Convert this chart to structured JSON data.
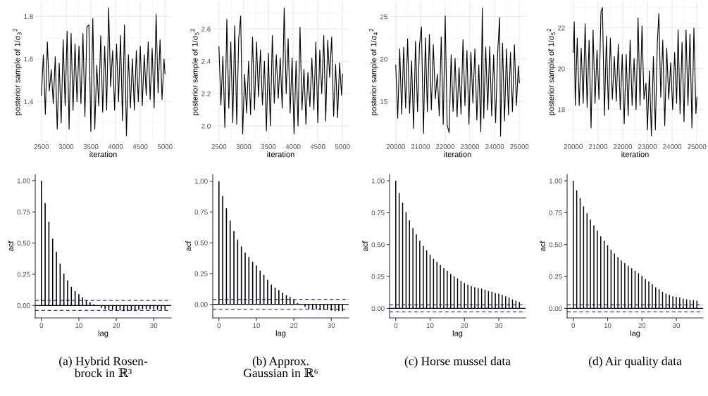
{
  "chart_data": [
    {
      "type": "line",
      "xlabel": "iteration",
      "ylabel": "posterior sample of 1/σ$_{3}$$^{2}$",
      "xlim": [
        2375,
        5125
      ],
      "xticks": [
        2500,
        3000,
        3500,
        4000,
        4500,
        5000
      ],
      "ylim": [
        1.21,
        1.87
      ],
      "yticks": [
        1.4,
        1.6,
        1.8
      ],
      "grid": true,
      "series": [
        {
          "color": "#000000",
          "x": [
            2500,
            2540,
            2580,
            2620,
            2660,
            2700,
            2740,
            2780,
            2820,
            2860,
            2900,
            2940,
            2980,
            3020,
            3060,
            3100,
            3140,
            3180,
            3220,
            3260,
            3300,
            3340,
            3380,
            3420,
            3460,
            3500,
            3540,
            3580,
            3620,
            3660,
            3700,
            3740,
            3780,
            3820,
            3860,
            3900,
            3940,
            3980,
            4020,
            4060,
            4100,
            4140,
            4180,
            4220,
            4260,
            4300,
            4340,
            4380,
            4420,
            4460,
            4500,
            4540,
            4580,
            4620,
            4660,
            4700,
            4740,
            4780,
            4820,
            4860,
            4900,
            4940,
            4980,
            5000
          ],
          "values": [
            1.43,
            1.62,
            1.34,
            1.68,
            1.45,
            1.55,
            1.39,
            1.61,
            1.27,
            1.58,
            1.3,
            1.69,
            1.38,
            1.73,
            1.27,
            1.72,
            1.36,
            1.67,
            1.4,
            1.66,
            1.39,
            1.72,
            1.33,
            1.75,
            1.76,
            1.26,
            1.79,
            1.27,
            1.57,
            1.38,
            1.71,
            1.35,
            1.66,
            1.36,
            1.84,
            1.47,
            1.64,
            1.36,
            1.67,
            1.4,
            1.71,
            1.31,
            1.76,
            1.24,
            1.62,
            1.37,
            1.6,
            1.36,
            1.64,
            1.4,
            1.66,
            1.38,
            1.62,
            1.43,
            1.68,
            1.41,
            1.65,
            1.37,
            1.81,
            1.44,
            1.69,
            1.41,
            1.6,
            1.53
          ]
        }
      ]
    },
    {
      "type": "line",
      "xlabel": "iteration",
      "ylabel": "posterior sample of 1/σ$_{5}$$^{2}$",
      "xlim": [
        2375,
        5125
      ],
      "xticks": [
        2500,
        3000,
        3500,
        4000,
        4500,
        5000
      ],
      "ylim": [
        1.9,
        2.77
      ],
      "yticks": [
        {
          "value": 2.0,
          "label": "2.0"
        },
        2.2,
        2.4,
        2.6
      ],
      "grid": true,
      "series": [
        {
          "color": "#000000",
          "x": [
            2500,
            2540,
            2580,
            2620,
            2660,
            2700,
            2740,
            2780,
            2820,
            2860,
            2900,
            2940,
            2980,
            3020,
            3060,
            3100,
            3140,
            3180,
            3220,
            3260,
            3300,
            3340,
            3380,
            3420,
            3460,
            3500,
            3540,
            3580,
            3620,
            3660,
            3700,
            3740,
            3780,
            3820,
            3860,
            3900,
            3940,
            3980,
            4020,
            4060,
            4100,
            4140,
            4180,
            4220,
            4260,
            4300,
            4340,
            4380,
            4420,
            4460,
            4500,
            4540,
            4580,
            4620,
            4660,
            4700,
            4740,
            4780,
            4820,
            4860,
            4900,
            4940,
            4980,
            5000
          ],
          "values": [
            2.49,
            2.13,
            2.43,
            1.99,
            2.66,
            2.11,
            2.52,
            2.02,
            2.62,
            2.01,
            2.54,
            2.68,
            1.95,
            2.32,
            2.08,
            2.4,
            2.07,
            2.55,
            2.1,
            2.52,
            2.18,
            2.47,
            2.13,
            2.4,
            1.97,
            2.45,
            2.0,
            2.56,
            2.14,
            2.44,
            2.17,
            2.42,
            2.11,
            2.73,
            2.2,
            2.54,
            2.08,
            2.42,
            1.95,
            2.4,
            2.0,
            2.61,
            2.1,
            2.35,
            2.01,
            2.33,
            2.12,
            2.42,
            2.1,
            2.52,
            2.02,
            2.47,
            2.2,
            2.56,
            2.03,
            2.53,
            2.3,
            2.55,
            2.06,
            2.38,
            2.05,
            2.39,
            2.19,
            2.32
          ]
        }
      ]
    },
    {
      "type": "line",
      "xlabel": "iteration",
      "ylabel": "posterior sample of 1/σ$_{4}$$^{2}$",
      "xlim": [
        19750,
        25250
      ],
      "xticks": [
        20000,
        21000,
        22000,
        23000,
        24000,
        25000
      ],
      "ylim": [
        10.2,
        26.8
      ],
      "yticks": [
        15,
        20,
        25
      ],
      "grid": true,
      "series": [
        {
          "color": "#000000",
          "x": [
            20000,
            20080,
            20160,
            20240,
            20320,
            20400,
            20480,
            20560,
            20640,
            20720,
            20800,
            20880,
            20960,
            21040,
            21120,
            21200,
            21280,
            21360,
            21440,
            21520,
            21600,
            21680,
            21760,
            21840,
            21920,
            22000,
            22080,
            22160,
            22240,
            22320,
            22400,
            22480,
            22560,
            22640,
            22720,
            22800,
            22880,
            22960,
            23040,
            23120,
            23200,
            23280,
            23360,
            23440,
            23500,
            23560,
            23640,
            23720,
            23800,
            23880,
            23960,
            24040,
            24120,
            24200,
            24240,
            24320,
            24400,
            24480,
            24560,
            24640,
            24720,
            24800,
            24880,
            24960,
            25000
          ],
          "values": [
            19.3,
            13.0,
            21.2,
            13.5,
            21.4,
            14.2,
            22.4,
            13.6,
            19.8,
            11.8,
            22.1,
            13.8,
            21.6,
            23.8,
            11.2,
            22.5,
            13.8,
            22.9,
            14.0,
            21.7,
            15.3,
            18.2,
            13.3,
            22.6,
            12.3,
            25.1,
            12.2,
            11.3,
            20.5,
            13.8,
            20.1,
            13.2,
            19.0,
            13.5,
            22.3,
            14.5,
            21.0,
            12.3,
            20.8,
            14.8,
            21.2,
            12.8,
            19.3,
            11.4,
            26.0,
            13.0,
            21.4,
            14.0,
            21.5,
            13.3,
            20.5,
            12.5,
            20.6,
            24.9,
            10.9,
            21.9,
            12.7,
            21.2,
            13.4,
            20.8,
            13.8,
            21.7,
            14.5,
            19.2,
            17.2
          ]
        }
      ]
    },
    {
      "type": "line",
      "xlabel": "iteration",
      "ylabel": "posterior sample of 1/σ$_{5}$$^{2}$",
      "xlim": [
        19750,
        25250
      ],
      "xticks": [
        20000,
        21000,
        22000,
        23000,
        24000,
        25000
      ],
      "ylim": [
        16.4,
        23.3
      ],
      "yticks": [
        18,
        20,
        22
      ],
      "grid": true,
      "series": [
        {
          "color": "#000000",
          "x": [
            20000,
            20040,
            20080,
            20160,
            20240,
            20320,
            20400,
            20480,
            20560,
            20640,
            20720,
            20800,
            20880,
            20960,
            21040,
            21120,
            21180,
            21260,
            21340,
            21420,
            21500,
            21580,
            21660,
            21740,
            21820,
            21900,
            21980,
            22060,
            22140,
            22220,
            22300,
            22380,
            22460,
            22540,
            22620,
            22700,
            22780,
            22860,
            22940,
            23000,
            23080,
            23160,
            23240,
            23320,
            23400,
            23460,
            23540,
            23620,
            23700,
            23780,
            23860,
            23940,
            24020,
            24100,
            24180,
            24240,
            24320,
            24400,
            24480,
            24560,
            24640,
            24720,
            24800,
            24880,
            24960,
            25000
          ],
          "values": [
            20.8,
            22.3,
            18.2,
            21.5,
            18.2,
            21.0,
            18.3,
            22.2,
            18.1,
            21.4,
            17.1,
            21.9,
            18.3,
            20.9,
            18.5,
            22.8,
            23.0,
            17.7,
            21.6,
            18.0,
            21.5,
            18.5,
            20.6,
            18.4,
            21.2,
            18.0,
            20.7,
            17.3,
            20.7,
            17.7,
            21.4,
            18.2,
            20.5,
            18.0,
            22.5,
            18.2,
            22.1,
            18.5,
            19.3,
            17.0,
            19.9,
            16.7,
            20.6,
            17.0,
            21.3,
            22.7,
            18.6,
            21.4,
            17.2,
            21.0,
            18.5,
            20.3,
            18.0,
            20.8,
            18.3,
            21.9,
            17.8,
            21.3,
            17.4,
            21.9,
            18.2,
            21.7,
            17.1,
            22.0,
            17.8,
            18.6
          ]
        }
      ]
    },
    {
      "type": "bar",
      "xlabel": "lag",
      "ylabel": "acf",
      "xlim": [
        -1.65,
        34.65
      ],
      "xticks": [
        0,
        10,
        20,
        30
      ],
      "ylim": [
        -0.1,
        1.05
      ],
      "yticks": [
        {
          "value": 0,
          "label": "0.00"
        },
        {
          "value": 0.25,
          "label": "0.25"
        },
        {
          "value": 0.5,
          "label": "0.50"
        },
        {
          "value": 0.75,
          "label": "0.75"
        },
        {
          "value": 1,
          "label": "1.00"
        }
      ],
      "x": [
        0,
        1,
        2,
        3,
        4,
        5,
        6,
        7,
        8,
        9,
        10,
        11,
        12,
        13,
        14,
        15,
        16,
        17,
        18,
        19,
        20,
        21,
        22,
        23,
        24,
        25,
        26,
        27,
        28,
        29,
        30,
        31,
        32,
        33
      ],
      "values": [
        1.0,
        0.82,
        0.67,
        0.535,
        0.43,
        0.335,
        0.255,
        0.2,
        0.15,
        0.115,
        0.09,
        0.065,
        0.04,
        0.025,
        0.01,
        null,
        -0.02,
        -0.03,
        -0.035,
        -0.035,
        -0.04,
        -0.04,
        -0.045,
        -0.045,
        -0.04,
        -0.04,
        -0.035,
        -0.03,
        -0.03,
        -0.03,
        -0.03,
        -0.035,
        -0.035,
        -0.035
      ],
      "color": "#000000",
      "ref_lines": [
        {
          "axis": "y",
          "value": 0,
          "color": "#000000",
          "line_style": "solid"
        },
        {
          "axis": "y",
          "value": 0.04,
          "color": "#3333aa",
          "line_style": "dashed"
        },
        {
          "axis": "y",
          "value": -0.04,
          "color": "#3333aa",
          "line_style": "dashed"
        }
      ],
      "annotations": [
        "(a) Hybrid Rosen-\nbrock in ℝ³"
      ]
    },
    {
      "type": "bar",
      "xlabel": "lag",
      "ylabel": "acf",
      "xlim": [
        -1.65,
        34.65
      ],
      "xticks": [
        0,
        10,
        20,
        30
      ],
      "ylim": [
        -0.11,
        1.055
      ],
      "yticks": [
        {
          "value": 0,
          "label": "0.00"
        },
        {
          "value": 0.25,
          "label": "0.25"
        },
        {
          "value": 0.5,
          "label": "0.50"
        },
        {
          "value": 0.75,
          "label": "0.75"
        },
        {
          "value": 1,
          "label": "1.00"
        }
      ],
      "x": [
        0,
        1,
        2,
        3,
        4,
        5,
        6,
        7,
        8,
        9,
        10,
        11,
        12,
        13,
        14,
        15,
        16,
        17,
        18,
        19,
        20,
        21,
        22,
        23,
        24,
        25,
        26,
        27,
        28,
        29,
        30,
        31,
        32,
        33
      ],
      "values": [
        1.0,
        0.88,
        0.78,
        0.68,
        0.595,
        0.525,
        0.47,
        0.42,
        0.385,
        0.345,
        0.315,
        0.275,
        0.24,
        0.2,
        0.16,
        0.135,
        0.115,
        0.095,
        0.075,
        0.06,
        0.035,
        0.01,
        null,
        -0.02,
        -0.04,
        -0.04,
        -0.04,
        -0.045,
        -0.045,
        -0.045,
        -0.05,
        -0.055,
        -0.055,
        -0.055
      ],
      "color": "#000000",
      "ref_lines": [
        {
          "axis": "y",
          "value": 0,
          "color": "#000000",
          "line_style": "solid"
        },
        {
          "axis": "y",
          "value": 0.04,
          "color": "#3333aa",
          "line_style": "dashed"
        },
        {
          "axis": "y",
          "value": -0.04,
          "color": "#3333aa",
          "line_style": "dashed"
        }
      ],
      "annotations": [
        "(b) Approx.\nGaussian in ℝ⁶"
      ]
    },
    {
      "type": "bar",
      "xlabel": "lag",
      "ylabel": "acf",
      "xlim": [
        -1.8,
        37.8
      ],
      "xticks": [
        0,
        10,
        20,
        30
      ],
      "ylim": [
        -0.075,
        1.05
      ],
      "yticks": [
        {
          "value": 0,
          "label": "0.00"
        },
        {
          "value": 0.25,
          "label": "0.25"
        },
        {
          "value": 0.5,
          "label": "0.50"
        },
        {
          "value": 0.75,
          "label": "0.75"
        },
        {
          "value": 1,
          "label": "1.00"
        }
      ],
      "x": [
        0,
        1,
        2,
        3,
        4,
        5,
        6,
        7,
        8,
        9,
        10,
        11,
        12,
        13,
        14,
        15,
        16,
        17,
        18,
        19,
        20,
        21,
        22,
        23,
        24,
        25,
        26,
        27,
        28,
        29,
        30,
        31,
        32,
        33,
        34,
        35,
        36
      ],
      "values": [
        1.0,
        0.905,
        0.83,
        0.755,
        0.69,
        0.63,
        0.58,
        0.53,
        0.49,
        0.455,
        0.42,
        0.39,
        0.365,
        0.34,
        0.315,
        0.295,
        0.27,
        0.25,
        0.235,
        0.215,
        0.2,
        0.185,
        0.175,
        0.165,
        0.16,
        0.155,
        0.145,
        0.135,
        0.13,
        0.12,
        0.115,
        0.105,
        0.095,
        0.085,
        0.07,
        0.06,
        0.05
      ],
      "color": "#000000",
      "ref_lines": [
        {
          "axis": "y",
          "value": 0,
          "color": "#000000",
          "line_style": "solid"
        },
        {
          "axis": "y",
          "value": 0.028,
          "color": "#3333aa",
          "line_style": "dashed"
        },
        {
          "axis": "y",
          "value": -0.028,
          "color": "#3333aa",
          "line_style": "dashed"
        }
      ],
      "annotations": [
        "(c) Horse mussel data"
      ]
    },
    {
      "type": "bar",
      "xlabel": "lag",
      "ylabel": "acf",
      "xlim": [
        -1.8,
        37.8
      ],
      "xticks": [
        0,
        10,
        20,
        30
      ],
      "ylim": [
        -0.075,
        1.05
      ],
      "yticks": [
        {
          "value": 0,
          "label": "0.00"
        },
        {
          "value": 0.25,
          "label": "0.25"
        },
        {
          "value": 0.5,
          "label": "0.50"
        },
        {
          "value": 0.75,
          "label": "0.75"
        },
        {
          "value": 1,
          "label": "1.00"
        }
      ],
      "x": [
        0,
        1,
        2,
        3,
        4,
        5,
        6,
        7,
        8,
        9,
        10,
        11,
        12,
        13,
        14,
        15,
        16,
        17,
        18,
        19,
        20,
        21,
        22,
        23,
        24,
        25,
        26,
        27,
        28,
        29,
        30,
        31,
        32,
        33,
        34,
        35,
        36
      ],
      "values": [
        1.0,
        0.925,
        0.865,
        0.8,
        0.745,
        0.695,
        0.65,
        0.61,
        0.565,
        0.53,
        0.495,
        0.46,
        0.43,
        0.4,
        0.375,
        0.355,
        0.335,
        0.315,
        0.295,
        0.275,
        0.255,
        0.23,
        0.21,
        0.19,
        0.165,
        0.15,
        0.13,
        0.115,
        0.105,
        0.095,
        0.09,
        0.085,
        0.075,
        0.07,
        0.065,
        0.065,
        0.06
      ],
      "color": "#000000",
      "ref_lines": [
        {
          "axis": "y",
          "value": 0,
          "color": "#000000",
          "line_style": "solid"
        },
        {
          "axis": "y",
          "value": 0.028,
          "color": "#3333aa",
          "line_style": "dashed"
        },
        {
          "axis": "y",
          "value": -0.028,
          "color": "#3333aa",
          "line_style": "dashed"
        }
      ],
      "annotations": [
        "(d) Air quality data"
      ]
    }
  ]
}
